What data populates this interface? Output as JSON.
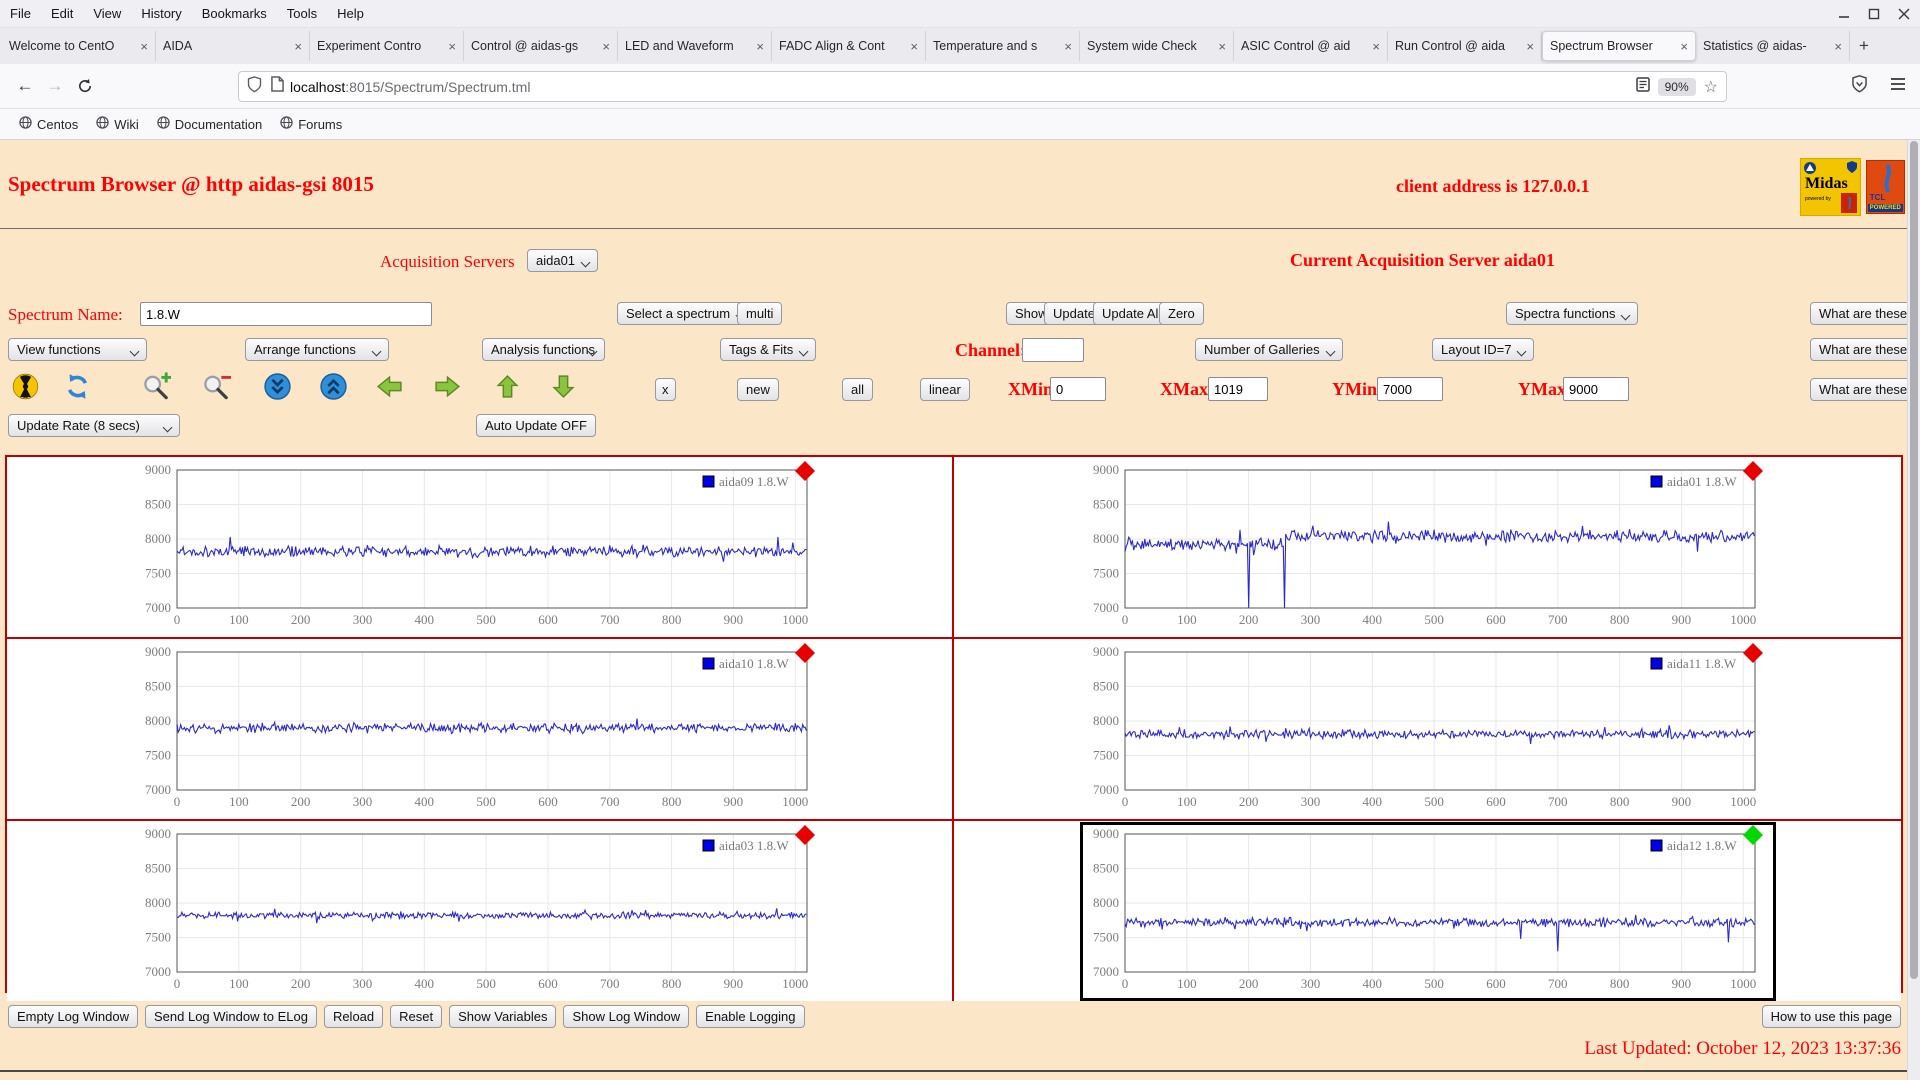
{
  "browser": {
    "menu": [
      "File",
      "Edit",
      "View",
      "History",
      "Bookmarks",
      "Tools",
      "Help"
    ],
    "window_controls": [
      "minimize-icon",
      "maximize-icon",
      "close-icon"
    ],
    "tabs": [
      {
        "label": "Welcome to CentO",
        "active": false
      },
      {
        "label": "AIDA",
        "active": false
      },
      {
        "label": "Experiment Contro",
        "active": false
      },
      {
        "label": "Control @ aidas-gs",
        "active": false
      },
      {
        "label": "LED and Waveform",
        "active": false
      },
      {
        "label": "FADC Align & Cont",
        "active": false
      },
      {
        "label": "Temperature and s",
        "active": false
      },
      {
        "label": "System wide Check",
        "active": false
      },
      {
        "label": "ASIC Control @ aid",
        "active": false
      },
      {
        "label": "Run Control @ aida",
        "active": false
      },
      {
        "label": "Spectrum Browser",
        "active": true
      },
      {
        "label": "Statistics @ aidas-",
        "active": false
      }
    ],
    "new_tab_label": "+",
    "url": {
      "host": "localhost",
      "path": ":8015/Spectrum/Spectrum.tml"
    },
    "zoom_level": "90%",
    "bookmarks": [
      "Centos",
      "Wiki",
      "Documentation",
      "Forums"
    ]
  },
  "page": {
    "title": "Spectrum Browser @ http aidas-gsi 8015",
    "client_address": "client address is 127.0.0.1",
    "logos": {
      "midas": "Midas",
      "powered_by": "powered by",
      "tcl": "TCL",
      "powered": "POWERED"
    },
    "acquisition_servers_label": "Acquisition Servers",
    "acquisition_server_value": "aida01",
    "current_server": "Current Acquisition Server aida01",
    "spectrum_name_label": "Spectrum Name:",
    "spectrum_name_value": "1.8.W",
    "select_spectrum_label": "Select a spectrum",
    "multi_label": "multi",
    "show_label": "Show",
    "update_label": "Update",
    "update_all_label": "Update All",
    "zero_label": "Zero",
    "spectra_functions_label": "Spectra functions",
    "what_are_these_label": "What are these?",
    "view_functions_label": "View functions",
    "arrange_functions_label": "Arrange functions",
    "analysis_functions_label": "Analysis functions",
    "tags_fits_label": "Tags & Fits",
    "channel_label": "Channel:",
    "channel_value": "",
    "number_of_galleries_label": "Number of Galleries",
    "layout_id_label": "Layout ID=7",
    "toolbar_icons": [
      "radiation-icon",
      "refresh-icon",
      "zoom-in-icon",
      "zoom-out-icon",
      "scroll-down-icon",
      "scroll-up-icon",
      "move-left-icon",
      "move-right-icon",
      "move-up-icon",
      "move-down-icon"
    ],
    "x_label": "x",
    "new_label": "new",
    "all_label": "all",
    "linear_label": "linear",
    "xmin_label": "XMin",
    "xmin_value": "0",
    "xmax_label": "XMax",
    "xmax_value": "1019",
    "ymin_label": "YMin",
    "ymin_value": "7000",
    "ymax_label": "YMax",
    "ymax_value": "9000",
    "update_rate_label": "Update Rate (8 secs)",
    "auto_update_label": "Auto Update OFF",
    "log_buttons": [
      "Empty Log Window",
      "Send Log Window to ELog",
      "Reload",
      "Reset",
      "Show Variables",
      "Show Log Window",
      "Enable Logging"
    ],
    "how_to_label": "How to use this page",
    "last_updated": "Last Updated: October 12, 2023 13:37:36"
  },
  "chart_data": {
    "type": "line",
    "xlim": [
      0,
      1019
    ],
    "ylim": [
      7000,
      9000
    ],
    "xticks": [
      0,
      100,
      200,
      300,
      400,
      500,
      600,
      700,
      800,
      900,
      1000
    ],
    "yticks": [
      7000,
      7500,
      8000,
      8500,
      9000
    ],
    "grid": true,
    "legend_position": "top-right",
    "line_color": "#2a2acc",
    "grid_color": "#e8e8e8",
    "border_color": "#545454",
    "tick_color": "#7d7d7d",
    "cell_border_color": "#c00000",
    "charts": [
      {
        "legend": "aida09 1.8.W",
        "marker_color": "#e80000",
        "seed": 42,
        "noise": 55,
        "segments": [
          {
            "from": 0,
            "to": 1020,
            "baseline": 7820
          }
        ],
        "dips": [],
        "selected": false
      },
      {
        "legend": "aida01 1.8.W",
        "marker_color": "#e80000",
        "seed": 7,
        "noise": 65,
        "segments": [
          {
            "from": 0,
            "to": 257,
            "baseline": 7920
          },
          {
            "from": 257,
            "to": 1020,
            "baseline": 8040
          }
        ],
        "dips": [
          {
            "x": 200,
            "y": 6900
          },
          {
            "x": 257,
            "y": 6900
          }
        ],
        "selected": false
      },
      {
        "legend": "aida10 1.8.W",
        "marker_color": "#e80000",
        "seed": 11,
        "noise": 50,
        "segments": [
          {
            "from": 0,
            "to": 1020,
            "baseline": 7900
          }
        ],
        "dips": [],
        "selected": false
      },
      {
        "legend": "aida11 1.8.W",
        "marker_color": "#e80000",
        "seed": 23,
        "noise": 45,
        "segments": [
          {
            "from": 0,
            "to": 1020,
            "baseline": 7810
          }
        ],
        "dips": [],
        "selected": false
      },
      {
        "legend": "aida03 1.8.W",
        "marker_color": "#e80000",
        "seed": 5,
        "noise": 35,
        "segments": [
          {
            "from": 0,
            "to": 1020,
            "baseline": 7820
          }
        ],
        "dips": [],
        "selected": false
      },
      {
        "legend": "aida12 1.8.W",
        "marker_color": "#00d800",
        "seed": 31,
        "noise": 45,
        "segments": [
          {
            "from": 0,
            "to": 1020,
            "baseline": 7720
          }
        ],
        "dips": [
          {
            "x": 640,
            "y": 7480
          },
          {
            "x": 700,
            "y": 7300
          },
          {
            "x": 975,
            "y": 7430
          }
        ],
        "selected": true
      }
    ]
  }
}
